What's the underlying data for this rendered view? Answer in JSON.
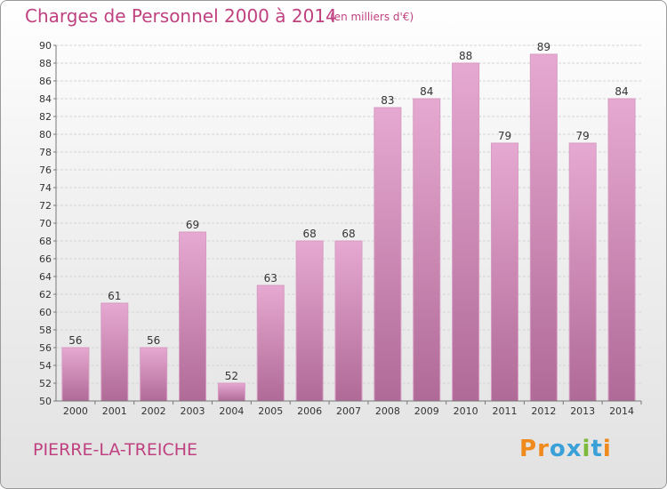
{
  "header": {
    "title": "Charges de Personnel 2000 à 2014",
    "subtitle": "(en milliers d'€)"
  },
  "footer": {
    "commune": "PIERRE-LA-TREICHE",
    "logo": "Proxiti"
  },
  "colors": {
    "accent": "#c0417f",
    "bar_top": "#e6a9d1",
    "bar_bottom": "#b06a97",
    "logo_letters": [
      "#f08a1d",
      "#f08a1d",
      "#3aa0d8",
      "#3aa0d8",
      "#7cba3b",
      "#3aa0d8",
      "#f08a1d"
    ]
  },
  "chart_data": {
    "type": "bar",
    "title": "Charges de Personnel 2000 à 2014",
    "subtitle": "(en milliers d'€)",
    "categories": [
      "2000",
      "2001",
      "2002",
      "2003",
      "2004",
      "2005",
      "2006",
      "2007",
      "2008",
      "2009",
      "2010",
      "2011",
      "2012",
      "2013",
      "2014"
    ],
    "values": [
      56,
      61,
      56,
      69,
      52,
      63,
      68,
      68,
      83,
      84,
      88,
      79,
      89,
      79,
      84
    ],
    "ylim": [
      50,
      90
    ],
    "yticks": [
      50,
      52,
      54,
      56,
      58,
      60,
      62,
      64,
      66,
      68,
      70,
      72,
      74,
      76,
      78,
      80,
      82,
      84,
      86,
      88,
      90
    ],
    "xlabel": "",
    "ylabel": "",
    "grid": "horizontal",
    "data_labels": true
  }
}
